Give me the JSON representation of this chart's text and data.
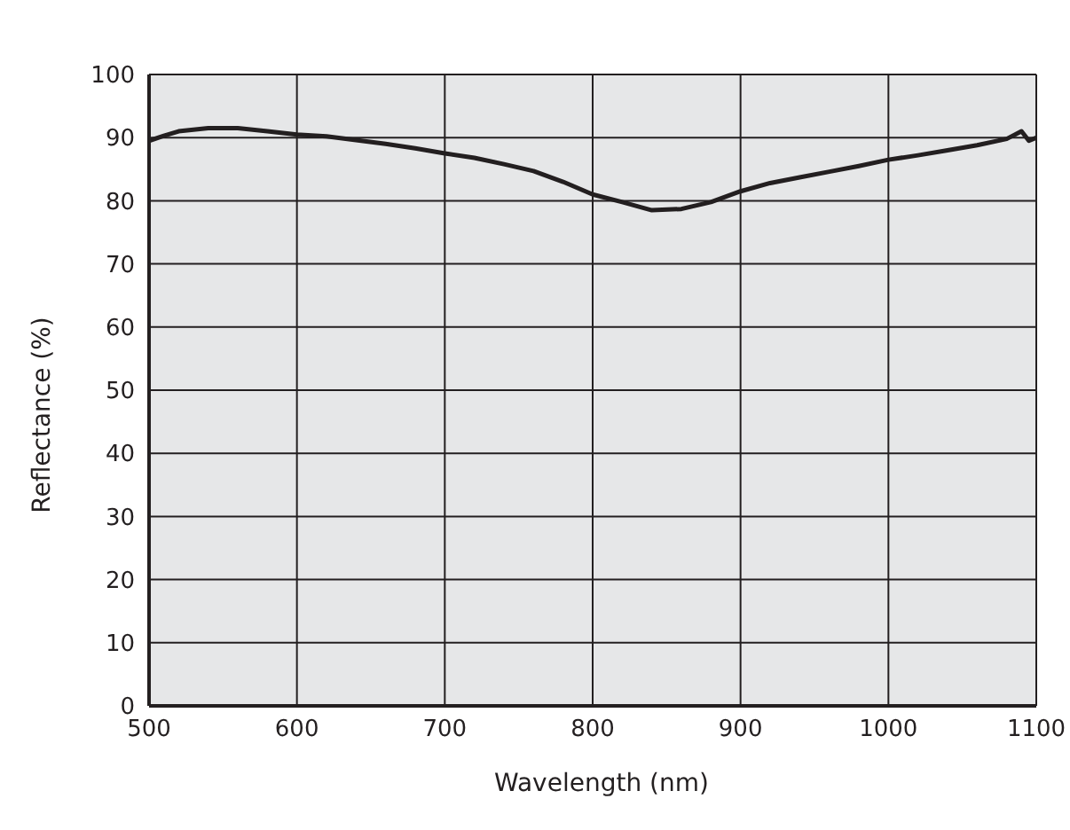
{
  "chart_data": {
    "type": "line",
    "xlabel": "Wavelength (nm)",
    "ylabel": "Reflectance (%)",
    "x": [
      500,
      510,
      520,
      540,
      560,
      580,
      600,
      620,
      640,
      660,
      680,
      700,
      720,
      740,
      760,
      780,
      800,
      820,
      840,
      860,
      880,
      900,
      920,
      940,
      960,
      980,
      1000,
      1020,
      1040,
      1060,
      1080,
      1090,
      1095,
      1100
    ],
    "series": [
      {
        "color": "#231f20",
        "values": [
          89.5,
          90.3,
          91,
          91.5,
          91.5,
          91,
          90.5,
          90.2,
          89.6,
          89,
          88.3,
          87.5,
          86.8,
          85.8,
          84.7,
          83,
          81,
          79.8,
          78.5,
          78.7,
          79.8,
          81.5,
          82.8,
          83.7,
          84.6,
          85.5,
          86.5,
          87.2,
          88,
          88.8,
          89.8,
          91,
          89.5,
          90
        ]
      }
    ],
    "xlim": [
      500,
      1100
    ],
    "xticks": [
      500,
      600,
      700,
      800,
      900,
      1000,
      1100
    ],
    "ylim": [
      0,
      100
    ],
    "yticks": [
      0,
      10,
      20,
      30,
      40,
      50,
      60,
      70,
      80,
      90,
      100
    ],
    "grid": true,
    "legend": false,
    "marker": "none",
    "line_style": "solid"
  }
}
